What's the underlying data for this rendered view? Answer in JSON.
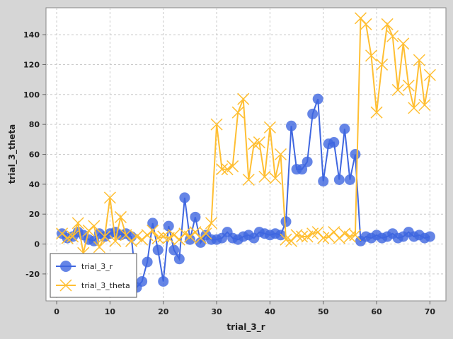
{
  "chart_data": {
    "type": "line",
    "xlabel": "trial_3_r",
    "ylabel": "trial_3_theta",
    "xlim": [
      -2,
      73
    ],
    "ylim": [
      -38,
      158
    ],
    "x_ticks": [
      0,
      10,
      20,
      30,
      40,
      50,
      60,
      70
    ],
    "y_ticks": [
      -20,
      0,
      20,
      40,
      60,
      80,
      100,
      120,
      140
    ],
    "grid": true,
    "legend_position": "bottom-left",
    "background_color": "#ffffff",
    "series": [
      {
        "name": "trial_3_r",
        "color": "#3f66e0",
        "marker": "circle",
        "x": [
          1,
          2,
          3,
          4,
          5,
          6,
          7,
          8,
          9,
          10,
          11,
          12,
          13,
          14,
          15,
          16,
          17,
          18,
          19,
          20,
          21,
          22,
          23,
          24,
          25,
          26,
          27,
          28,
          29,
          30,
          31,
          32,
          33,
          34,
          35,
          36,
          37,
          38,
          39,
          40,
          41,
          42,
          43,
          44,
          45,
          46,
          47,
          48,
          49,
          50,
          51,
          52,
          53,
          54,
          55,
          56,
          57,
          58,
          59,
          60,
          61,
          62,
          63,
          64,
          65,
          66,
          67,
          68,
          69,
          70
        ],
        "values": [
          7,
          4,
          5,
          8,
          6,
          3,
          2,
          7,
          5,
          7,
          8,
          6,
          7,
          5,
          -29,
          -25,
          -12,
          14,
          -4,
          -25,
          12,
          -4,
          -10,
          31,
          3,
          18,
          1,
          6,
          3,
          3,
          4,
          8,
          4,
          3,
          5,
          6,
          4,
          8,
          7,
          6,
          7,
          6,
          15,
          79,
          50,
          50,
          55,
          87,
          97,
          42,
          67,
          68,
          43,
          77,
          43,
          60,
          2,
          5,
          4,
          6,
          4,
          5,
          7,
          4,
          5,
          8,
          5,
          6,
          4,
          5
        ]
      },
      {
        "name": "trial_3_theta",
        "color": "#ffbf33",
        "marker": "x",
        "x": [
          1,
          2,
          3,
          4,
          5,
          6,
          7,
          8,
          9,
          10,
          11,
          12,
          13,
          14,
          15,
          16,
          17,
          18,
          19,
          20,
          21,
          22,
          23,
          24,
          25,
          26,
          27,
          28,
          29,
          30,
          31,
          32,
          33,
          34,
          35,
          36,
          37,
          38,
          39,
          40,
          41,
          42,
          43,
          44,
          45,
          46,
          47,
          48,
          49,
          50,
          51,
          52,
          53,
          54,
          55,
          56,
          57,
          58,
          59,
          60,
          61,
          62,
          63,
          64,
          65,
          66,
          67,
          68,
          69,
          70
        ],
        "values": [
          7,
          4,
          5,
          14,
          -6,
          9,
          12,
          -2,
          5,
          31,
          2,
          18,
          6,
          2,
          5,
          3,
          6,
          9,
          4,
          5,
          4,
          6,
          3,
          7,
          5,
          8,
          4,
          7,
          14,
          80,
          50,
          50,
          52,
          88,
          97,
          43,
          67,
          68,
          45,
          78,
          44,
          60,
          3,
          2,
          6,
          5,
          5,
          7,
          8,
          4,
          5,
          8,
          4,
          7,
          5,
          6,
          151,
          147,
          126,
          88,
          120,
          147,
          139,
          103,
          134,
          106,
          91,
          123,
          93,
          113
        ]
      }
    ]
  }
}
